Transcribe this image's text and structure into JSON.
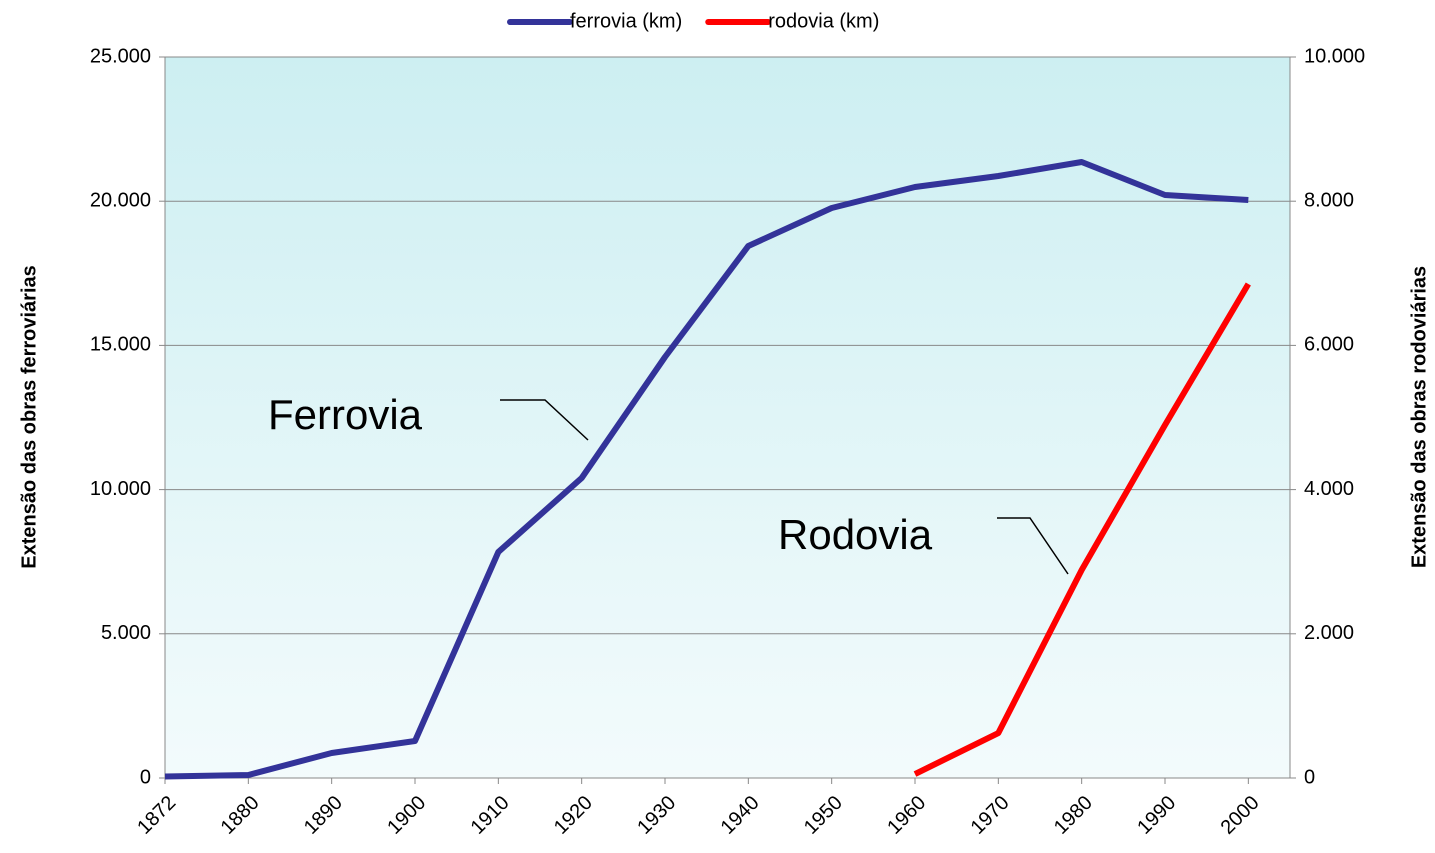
{
  "chart_data": {
    "type": "line",
    "categories": [
      "1872",
      "1880",
      "1890",
      "1900",
      "1910",
      "1920",
      "1930",
      "1940",
      "1950",
      "1960",
      "1970",
      "1980",
      "1990",
      "2000"
    ],
    "series": [
      {
        "name": "ferrovia (km)",
        "color": "#333399",
        "values": [
          50,
          104,
          867,
          1283,
          7836,
          10402,
          14598,
          18447,
          19764,
          20492,
          20874,
          21359,
          20215,
          20042
        ]
      },
      {
        "name": "rodovia (km)",
        "color": "#ff0000",
        "axis": "y2",
        "values": [
          null,
          null,
          null,
          null,
          null,
          null,
          null,
          null,
          null,
          55,
          624,
          2885,
          4896,
          6852
        ]
      }
    ],
    "y_label": "Extensão das obras ferroviárias",
    "y2_label": "Extensão das obras rodoviárias",
    "ylim": [
      0,
      25000
    ],
    "yticks": [
      0,
      {
        "value": 5000,
        "label": "5.000"
      },
      {
        "value": 10000,
        "label": "10.000"
      },
      {
        "value": 15000,
        "label": "15.000"
      },
      {
        "value": 20000,
        "label": "20.000"
      },
      {
        "value": 25000,
        "label": "25.000"
      }
    ],
    "y2lim": [
      0,
      10000
    ],
    "y2ticks": [
      0,
      {
        "value": 2000,
        "label": "2.000"
      },
      {
        "value": 4000,
        "label": "4.000"
      },
      {
        "value": 6000,
        "label": "6.000"
      },
      {
        "value": 8000,
        "label": "8.000"
      },
      {
        "value": 10000,
        "label": "10.000"
      }
    ],
    "annotations": [
      "Ferrovia",
      "Rodovia"
    ],
    "grid": true,
    "legend": "top"
  }
}
